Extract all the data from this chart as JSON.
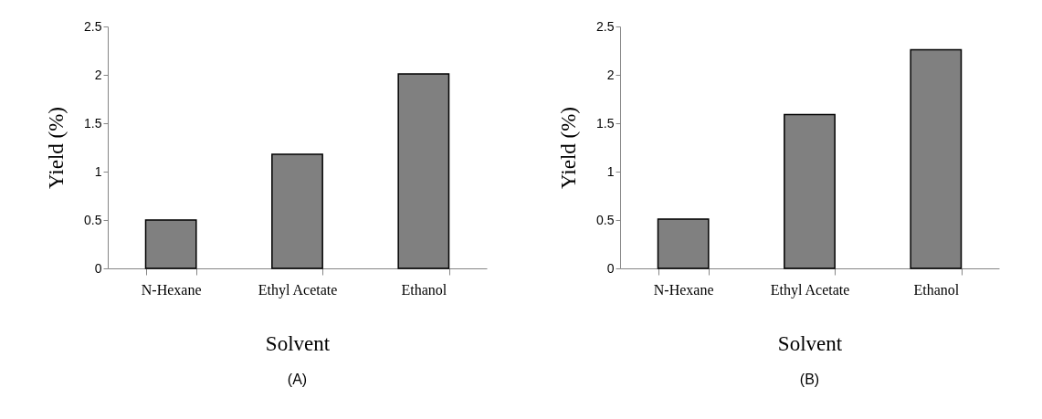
{
  "chart_data": [
    {
      "type": "bar",
      "title": "(A)",
      "xlabel": "Solvent",
      "ylabel": "Yield (%)",
      "categories": [
        "N-Hexane",
        "Ethyl Acetate",
        "Ethanol"
      ],
      "values": [
        0.5,
        1.18,
        2.01
      ],
      "color": "#808080",
      "ylim": [
        0,
        2.5
      ],
      "yticks": [
        0,
        0.5,
        1,
        1.5,
        2,
        2.5
      ]
    },
    {
      "type": "bar",
      "title": "(B)",
      "xlabel": "Solvent",
      "ylabel": "Yield (%)",
      "categories": [
        "N-Hexane",
        "Ethyl Acetate",
        "Ethanol"
      ],
      "values": [
        0.51,
        1.59,
        2.26
      ],
      "color": "#808080",
      "ylim": [
        0,
        2.5
      ],
      "yticks": [
        0,
        0.5,
        1,
        1.5,
        2,
        2.5
      ]
    }
  ]
}
